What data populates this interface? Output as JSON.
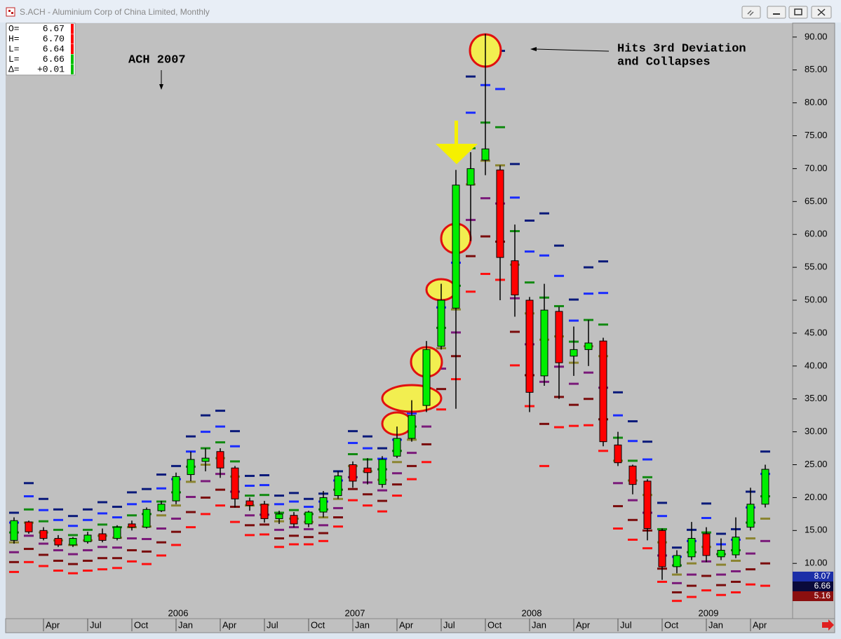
{
  "window_title": "S.ACH - Aluminium Corp of China Limited, Monthly",
  "info_box": [
    {
      "label": "O=",
      "value": "6.67",
      "color": "#ff0000"
    },
    {
      "label": "H=",
      "value": "6.70",
      "color": "#ff0000"
    },
    {
      "label": "L=",
      "value": "6.64",
      "color": "#ff0000"
    },
    {
      "label": "L=",
      "value": "6.66",
      "color": "#00c000"
    },
    {
      "label": "Δ=",
      "value": "+0.01",
      "color": "#00c000"
    }
  ],
  "price_flags": [
    {
      "label": "8.07",
      "color": "#1c2fa8"
    },
    {
      "label": "6.66",
      "color": "#0a0a3a"
    },
    {
      "label": "5.16",
      "color": "#8b0f0f"
    }
  ],
  "chart_data": {
    "type": "candlestick",
    "annotations": [
      "ACH 2007",
      "Hits 3rd Deviation",
      "and Collapses"
    ],
    "categories": [
      null,
      null,
      "Apr",
      null,
      null,
      "Jul",
      null,
      null,
      "Oct",
      null,
      null,
      "Jan",
      null,
      null,
      "Apr",
      null,
      null,
      "Jul",
      null,
      null,
      "Oct",
      null,
      null,
      "Jan",
      null,
      null,
      "Apr",
      null,
      null,
      "Jul",
      null,
      null,
      "Oct",
      null,
      null,
      "Jan",
      null,
      null,
      "Apr",
      null,
      null,
      "Jul",
      null,
      null,
      "Oct",
      null,
      null,
      "Jan",
      null,
      null,
      "Apr",
      null
    ],
    "years": [
      null,
      null,
      null,
      null,
      null,
      null,
      null,
      null,
      null,
      null,
      null,
      "2006",
      null,
      null,
      null,
      null,
      null,
      null,
      null,
      null,
      null,
      null,
      null,
      "2007",
      null,
      null,
      null,
      null,
      null,
      null,
      null,
      null,
      null,
      null,
      null,
      "2008",
      null,
      null,
      null,
      null,
      null,
      null,
      null,
      null,
      null,
      null,
      null,
      "2009",
      null,
      null,
      null,
      null
    ],
    "open": [
      13.5,
      16.3,
      15,
      13.8,
      12.8,
      13.3,
      14.5,
      13.8,
      16,
      15.5,
      18,
      19.5,
      23.5,
      25.5,
      27,
      24.5,
      19.5,
      19,
      16.8,
      17.3,
      16,
      17.8,
      20.3,
      25,
      24.5,
      22,
      26.3,
      29,
      34,
      43,
      48.8,
      67.5,
      71.3,
      69.8,
      56,
      50,
      38.5,
      48.3,
      41.5,
      42.5,
      43.8,
      28,
      24.8,
      22.5,
      15,
      9.5,
      11,
      14.5,
      11,
      11.3,
      15.5,
      19
    ],
    "high": [
      17,
      16.5,
      15.5,
      14.3,
      14,
      14.8,
      15.3,
      15.8,
      16.5,
      18.5,
      19.5,
      23.8,
      27,
      27.5,
      27.5,
      24.8,
      20,
      19.5,
      18,
      17.8,
      18,
      21,
      24,
      25.5,
      26,
      26.3,
      30.8,
      34.8,
      43.8,
      52.5,
      69.8,
      72.5,
      90.5,
      70.5,
      61.5,
      50.5,
      52.5,
      49,
      46,
      47,
      44.3,
      30,
      25,
      22.8,
      15.3,
      12,
      16.3,
      15.5,
      13.8,
      17,
      21.5,
      25
    ],
    "low": [
      13,
      14.5,
      13.5,
      12.5,
      12.5,
      13,
      13.2,
      13.5,
      15,
      15.3,
      17.8,
      19,
      22.5,
      24,
      23,
      18.5,
      18,
      16.2,
      16,
      15.5,
      15.5,
      17,
      19.8,
      21.5,
      22,
      21.5,
      26,
      28.5,
      33,
      42.5,
      33.5,
      59,
      69,
      50,
      47.5,
      33,
      37,
      35,
      38.5,
      40,
      27.8,
      24.8,
      20.5,
      13.5,
      7.5,
      8.5,
      10.5,
      10.2,
      10.5,
      10.8,
      15,
      18.5
    ],
    "close": [
      16.5,
      14.8,
      13.8,
      12.8,
      13.8,
      14.3,
      13.5,
      15.5,
      15.5,
      18.2,
      19,
      23.2,
      25.8,
      26,
      24.5,
      19.8,
      18.8,
      16.8,
      17.5,
      16,
      17.8,
      20,
      23.3,
      22.5,
      23.8,
      25.8,
      29,
      32.5,
      42.5,
      50,
      67.5,
      70,
      73,
      56.5,
      50.8,
      36,
      48.5,
      40.5,
      42.5,
      43.5,
      28.5,
      25.3,
      22,
      15.3,
      9.5,
      11.2,
      13.8,
      11.2,
      12,
      14,
      19,
      24.3
    ],
    "up_color": "#00ee00",
    "down_color": "#ff0000",
    "bands": [
      {
        "color": "#0a1a7a",
        "values": [
          17.7,
          22.2,
          19.8,
          18.2,
          17.2,
          18.2,
          19.3,
          18.6,
          20.8,
          21.3,
          23.5,
          24.8,
          29.3,
          32.5,
          33.2,
          30.1,
          23.3,
          23.4,
          20.3,
          20.7,
          19.8,
          20.6,
          24.0,
          30.1,
          29.3,
          27.5,
          30.5,
          34.8,
          41.6,
          52.0,
          59.3,
          84.0,
          88.5,
          87.9,
          70.7,
          62.1,
          63.2,
          58.3,
          50.1,
          55.0,
          55.9,
          36.0,
          31.6,
          28.5,
          19.2,
          12.4,
          15.1,
          19.1,
          14.5,
          15.2,
          20.9,
          27.0
        ]
      },
      {
        "color": "#1a2cff",
        "values": [
          16.2,
          20.2,
          18.1,
          16.6,
          15.7,
          16.6,
          17.6,
          17.0,
          19.0,
          19.4,
          21.4,
          22.8,
          27.0,
          30.0,
          30.8,
          27.8,
          21.8,
          21.9,
          19.0,
          19.4,
          18.6,
          19.4,
          22.6,
          28.3,
          27.5,
          25.9,
          28.8,
          32.8,
          38.9,
          48.9,
          55.7,
          78.5,
          82.7,
          82.1,
          65.6,
          57.4,
          56.8,
          53.7,
          46.9,
          51.0,
          51.1,
          32.5,
          28.6,
          25.8,
          17.2,
          11.0,
          13.4,
          16.9,
          12.9,
          13.6,
          18.5,
          23.6
        ]
      },
      {
        "color": "#128a12",
        "values": [
          14.7,
          18.2,
          16.4,
          15.1,
          14.3,
          15.1,
          15.9,
          15.5,
          17.3,
          17.5,
          19.4,
          20.8,
          24.7,
          27.5,
          28.4,
          25.5,
          20.3,
          20.4,
          17.7,
          18.1,
          17.5,
          18.2,
          21.2,
          26.6,
          25.8,
          24.3,
          27.1,
          30.8,
          36.2,
          45.8,
          52.2,
          73.1,
          77.0,
          76.3,
          60.5,
          52.7,
          50.4,
          49.1,
          43.7,
          47.0,
          46.3,
          29.1,
          25.6,
          23.1,
          15.2,
          9.7,
          11.7,
          14.7,
          11.4,
          12.0,
          16.2,
          20.2
        ]
      },
      {
        "color": "#8a8430",
        "values": [
          13.2,
          16.2,
          14.7,
          13.5,
          12.8,
          13.5,
          14.2,
          13.9,
          15.5,
          15.6,
          17.3,
          18.8,
          22.4,
          25.0,
          26.0,
          23.2,
          18.8,
          18.9,
          16.4,
          16.8,
          16.3,
          17.0,
          19.8,
          24.8,
          24.0,
          22.7,
          25.4,
          28.8,
          33.5,
          42.7,
          48.6,
          67.6,
          71.2,
          70.5,
          55.4,
          48.0,
          44.0,
          44.5,
          40.5,
          43.0,
          41.5,
          25.6,
          22.6,
          20.4,
          13.2,
          8.3,
          10.0,
          12.5,
          9.8,
          10.4,
          13.8,
          16.8
        ]
      },
      {
        "color": "#7a1a7a",
        "values": [
          11.7,
          14.2,
          13.0,
          12.0,
          11.4,
          12.0,
          12.5,
          12.4,
          13.8,
          13.7,
          15.3,
          16.8,
          20.1,
          22.5,
          23.6,
          20.9,
          17.3,
          17.4,
          15.1,
          15.5,
          15.2,
          15.8,
          18.4,
          23.1,
          22.3,
          21.1,
          23.7,
          26.8,
          30.8,
          39.6,
          45.1,
          62.2,
          65.5,
          64.7,
          50.3,
          43.3,
          37.6,
          39.9,
          37.3,
          39.0,
          36.7,
          22.2,
          19.6,
          17.7,
          11.2,
          7.0,
          8.3,
          10.3,
          8.3,
          8.8,
          11.5,
          13.4
        ]
      },
      {
        "color": "#7a0c0c",
        "values": [
          10.2,
          12.2,
          11.3,
          10.4,
          9.9,
          10.4,
          10.8,
          10.8,
          12.0,
          11.8,
          13.2,
          14.8,
          17.8,
          20.0,
          21.2,
          18.6,
          15.8,
          15.9,
          13.8,
          14.2,
          14.0,
          14.6,
          17.0,
          21.3,
          20.5,
          19.5,
          22.0,
          24.8,
          28.1,
          36.5,
          41.5,
          56.7,
          59.7,
          58.9,
          45.2,
          38.6,
          31.2,
          35.3,
          34.1,
          35.0,
          31.9,
          18.7,
          16.6,
          15.0,
          9.2,
          5.6,
          6.6,
          8.1,
          6.7,
          7.2,
          9.1,
          10.0
        ]
      },
      {
        "color": "#ff1010",
        "values": [
          8.7,
          10.2,
          9.6,
          8.9,
          8.5,
          8.9,
          9.1,
          9.3,
          10.3,
          9.9,
          11.2,
          12.8,
          15.5,
          17.5,
          18.8,
          16.3,
          14.3,
          14.4,
          12.5,
          12.9,
          12.9,
          13.4,
          15.6,
          19.6,
          18.8,
          17.9,
          20.3,
          22.8,
          25.4,
          33.4,
          38.0,
          51.3,
          54.0,
          53.1,
          40.1,
          33.9,
          24.8,
          30.7,
          30.9,
          31.0,
          27.1,
          15.3,
          13.6,
          12.3,
          7.2,
          4.3,
          4.9,
          5.9,
          5.2,
          5.6,
          6.8,
          6.6
        ]
      }
    ],
    "ylim": [
      1.6,
      91.9
    ],
    "yticks": [
      {
        "value": 10,
        "label": "10.00"
      },
      {
        "value": 15,
        "label": "15.00"
      },
      {
        "value": 20,
        "label": "20.00"
      },
      {
        "value": 25,
        "label": "25.00"
      },
      {
        "value": 30,
        "label": "30.00"
      },
      {
        "value": 35,
        "label": "35.00"
      },
      {
        "value": 40,
        "label": "40.00"
      },
      {
        "value": 45,
        "label": "45.00"
      },
      {
        "value": 50,
        "label": "50.00"
      },
      {
        "value": 55,
        "label": "55.00"
      },
      {
        "value": 60,
        "label": "60.00"
      },
      {
        "value": 65,
        "label": "65.00"
      },
      {
        "value": 70,
        "label": "70.00"
      },
      {
        "value": 75,
        "label": "75.00"
      },
      {
        "value": 80,
        "label": "80.00"
      },
      {
        "value": 85,
        "label": "85.00"
      },
      {
        "value": 90,
        "label": "90.00"
      }
    ],
    "grid": false
  }
}
